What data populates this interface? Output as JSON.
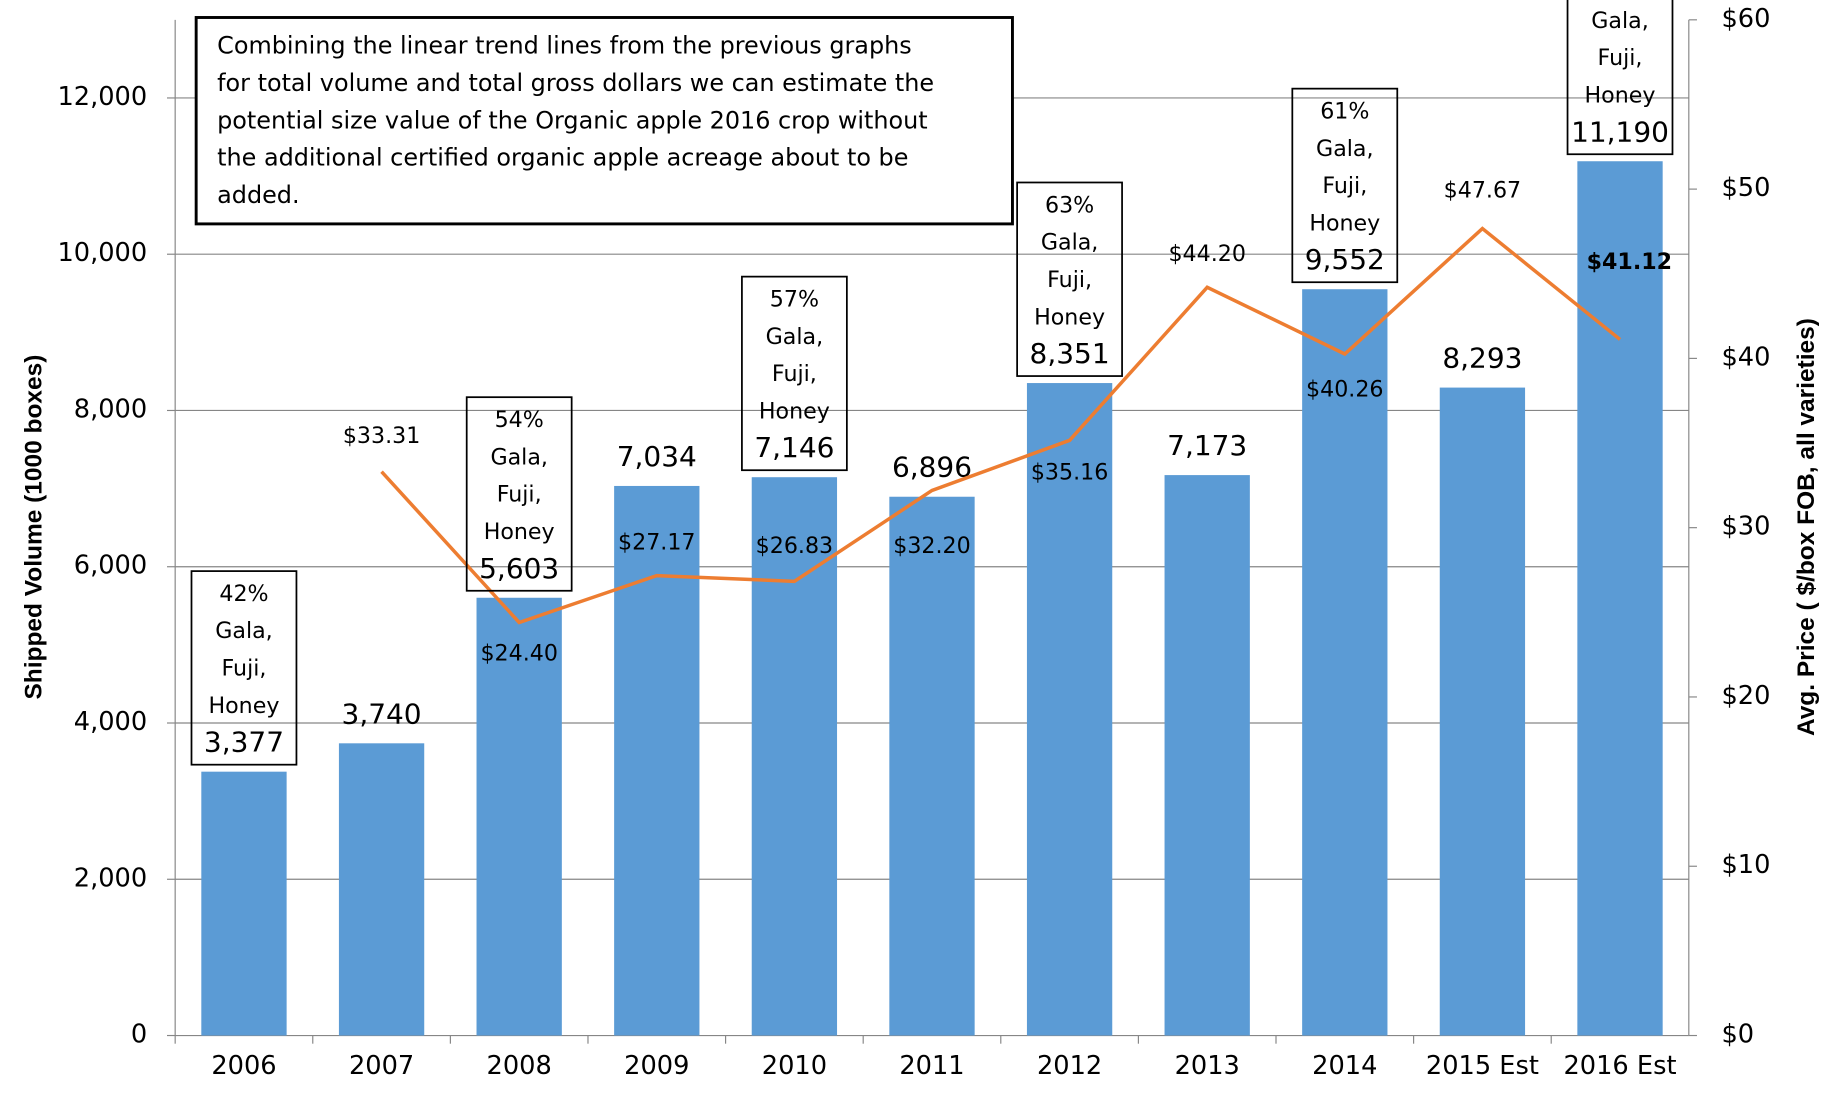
{
  "chart_data": {
    "type": "bar",
    "categories": [
      "2006",
      "2007",
      "2008",
      "2009",
      "2010",
      "2011",
      "2012",
      "2013",
      "2014",
      "2015 Est",
      "2016 Est"
    ],
    "series": [
      {
        "name": "Shipped Volume",
        "type": "bar",
        "color": "#5b9bd5",
        "values": [
          3377,
          3740,
          5603,
          7034,
          7146,
          6896,
          8351,
          7173,
          9552,
          8293,
          11190
        ],
        "value_labels": [
          "3,377",
          "3,740",
          "5,603",
          "7,034",
          "7,146",
          "6,896",
          "8,351",
          "7,173",
          "9,552",
          "8,293",
          "11,190"
        ]
      },
      {
        "name": "Avg. Price",
        "type": "line",
        "color": "#ed7d31",
        "axis": "y2",
        "values": [
          null,
          33.31,
          24.4,
          27.17,
          26.83,
          32.2,
          35.16,
          44.2,
          40.26,
          47.67,
          41.12
        ],
        "value_labels": [
          null,
          "$33.31",
          "$24.40",
          "$27.17",
          "$26.83",
          "$32.20",
          "$35.16",
          "$44.20",
          "$40.26",
          "$47.67",
          "$41.12"
        ]
      }
    ],
    "ylabel": "Shipped Volume (1000 boxes)",
    "y2label": "Avg. Price ( $/box FOB, all varieties)",
    "ylim": [
      0,
      13000
    ],
    "yticks": [
      {
        "value": 0,
        "label": "0"
      },
      {
        "value": 2000,
        "label": "2,000"
      },
      {
        "value": 4000,
        "label": "4,000"
      },
      {
        "value": 6000,
        "label": "6,000"
      },
      {
        "value": 8000,
        "label": "8,000"
      },
      {
        "value": 10000,
        "label": "10,000"
      },
      {
        "value": 12000,
        "label": "12,000"
      }
    ],
    "y2lim": [
      0,
      60
    ],
    "y2ticks": [
      {
        "value": 0,
        "label": "$0"
      },
      {
        "value": 10,
        "label": "$10"
      },
      {
        "value": 20,
        "label": "$20"
      },
      {
        "value": 30,
        "label": "$30"
      },
      {
        "value": 40,
        "label": "$40"
      },
      {
        "value": 50,
        "label": "$50"
      },
      {
        "value": 60,
        "label": "$60"
      }
    ],
    "grid": true,
    "note": [
      "Combining the linear trend lines from the previous graphs",
      "for total volume and total gross dollars we can estimate the",
      "potential size value of the Organic apple 2016 crop without",
      "the additional certified organic apple acreage about to be",
      "added."
    ],
    "annotations": [
      {
        "category": "2006",
        "lines": [
          "42%",
          "Gala,",
          "Fuji,",
          "Honey"
        ]
      },
      {
        "category": "2008",
        "lines": [
          "54%",
          "Gala,",
          "Fuji,",
          "Honey"
        ]
      },
      {
        "category": "2010",
        "lines": [
          "57%",
          "Gala,",
          "Fuji,",
          "Honey"
        ]
      },
      {
        "category": "2012",
        "lines": [
          "63%",
          "Gala,",
          "Fuji,",
          "Honey"
        ]
      },
      {
        "category": "2014",
        "lines": [
          "61%",
          "Gala,",
          "Fuji,",
          "Honey"
        ]
      },
      {
        "category": "2016 Est",
        "lines": [
          "Gala,",
          "Fuji,",
          "Honey"
        ]
      }
    ]
  }
}
